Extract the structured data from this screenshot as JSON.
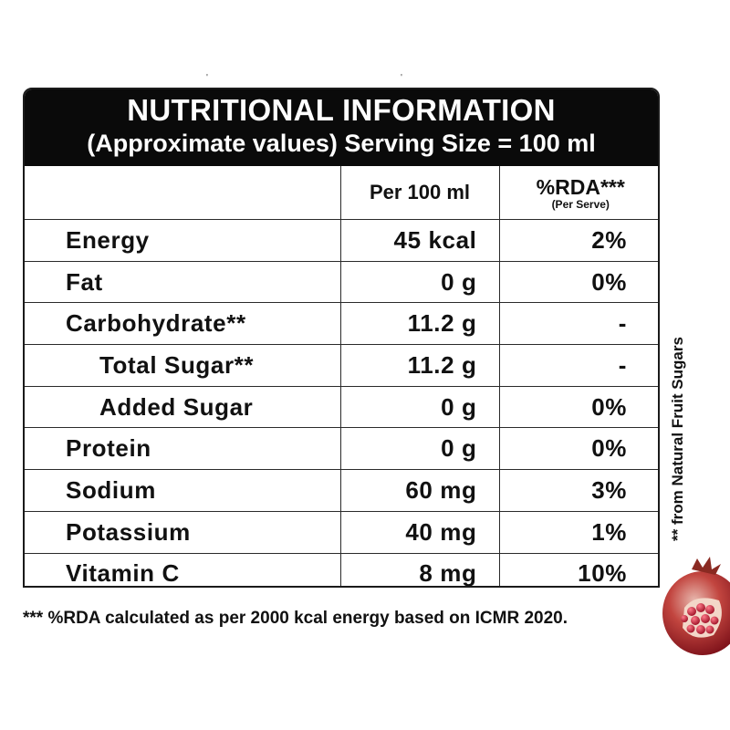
{
  "panel": {
    "title": "NUTRITIONAL INFORMATION",
    "subtitle": "(Approximate values) Serving Size = 100 ml"
  },
  "table": {
    "columns": {
      "per_100ml": "Per 100 ml",
      "rda": "%RDA***",
      "rda_sub": "(Per Serve)"
    },
    "rows": [
      {
        "name": "Energy",
        "value": "45 kcal",
        "rda": "2%"
      },
      {
        "name": "Fat",
        "value": "0 g",
        "rda": "0%"
      },
      {
        "name": "Carbohydrate**",
        "value": "11.2 g",
        "rda": "-"
      },
      {
        "name": "Total Sugar**",
        "value": "11.2 g",
        "rda": "-"
      },
      {
        "name": "Added Sugar",
        "value": "0 g",
        "rda": "0%"
      },
      {
        "name": "Protein",
        "value": "0 g",
        "rda": "0%"
      },
      {
        "name": "Sodium",
        "value": "60 mg",
        "rda": "3%"
      },
      {
        "name": "Potassium",
        "value": "40 mg",
        "rda": "1%"
      },
      {
        "name": "Vitamin C",
        "value": "8 mg",
        "rda": "10%"
      }
    ]
  },
  "side_note": "** from Natural Fruit Sugars",
  "footnote": "*** %RDA calculated as per  2000 kcal energy based on ICMR 2020.",
  "colors": {
    "header_bg": "#0a0a0a",
    "header_text": "#ffffff",
    "border": "#2a2a2a",
    "fruit": "#a3162a"
  },
  "image": {
    "fruit": "pomegranate"
  }
}
